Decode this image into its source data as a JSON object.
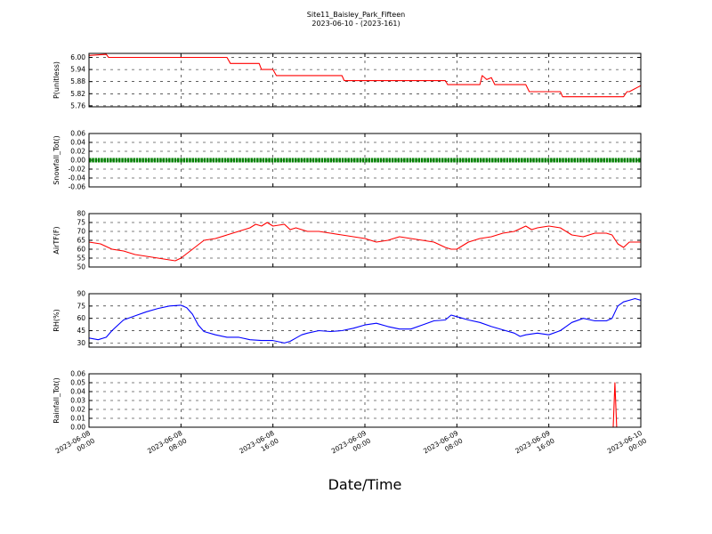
{
  "title": "Site11_Baisley_Park_Fifteen",
  "subtitle": "2023-06-10 - (2023-161)",
  "xlabel": "Date/Time",
  "x_ticks": [
    {
      "t": 0,
      "line1": "2023-06-08",
      "line2": "00:00"
    },
    {
      "t": 8,
      "line1": "2023-06-08",
      "line2": "08:00"
    },
    {
      "t": 16,
      "line1": "2023-06-08",
      "line2": "16:00"
    },
    {
      "t": 24,
      "line1": "2023-06-09",
      "line2": "00:00"
    },
    {
      "t": 32,
      "line1": "2023-06-09",
      "line2": "08:00"
    },
    {
      "t": 40,
      "line1": "2023-06-09",
      "line2": "16:00"
    },
    {
      "t": 48,
      "line1": "2023-06-10",
      "line2": "00:00"
    }
  ],
  "chart_data": [
    {
      "type": "line",
      "ylabel": "P(unitless)",
      "ylim": [
        5.755,
        6.02
      ],
      "yticks": [
        "6.00",
        "5.94",
        "5.88",
        "5.82",
        "5.76"
      ],
      "ytick_values": [
        6.0,
        5.94,
        5.88,
        5.82,
        5.76
      ],
      "color": "#ff0000",
      "x": [
        0,
        1.5,
        1.7,
        2.5,
        4,
        5,
        7,
        8,
        9,
        10,
        11,
        12,
        12.3,
        14,
        14.8,
        15,
        16,
        16.3,
        17,
        18,
        20,
        22,
        22.2,
        24,
        26,
        28,
        30,
        31,
        31.2,
        33,
        34,
        34.2,
        34.6,
        35,
        35.3,
        36,
        37,
        38,
        38.3,
        40,
        40.5,
        41,
        41.2,
        44,
        44.5,
        45,
        46,
        46.5,
        46.8,
        47,
        48
      ],
      "y": [
        6.01,
        6.015,
        6.0,
        6.0,
        6.0,
        6.0,
        6.0,
        6.0,
        6.0,
        6.0,
        6.0,
        6.0,
        5.97,
        5.97,
        5.97,
        5.94,
        5.94,
        5.91,
        5.91,
        5.91,
        5.91,
        5.91,
        5.885,
        5.885,
        5.885,
        5.885,
        5.885,
        5.885,
        5.865,
        5.865,
        5.865,
        5.91,
        5.89,
        5.9,
        5.865,
        5.865,
        5.865,
        5.865,
        5.83,
        5.83,
        5.83,
        5.83,
        5.805,
        5.805,
        5.805,
        5.805,
        5.805,
        5.805,
        5.83,
        5.83,
        5.86
      ]
    },
    {
      "type": "line",
      "ylabel": "Snowfall_Tot()",
      "ylim": [
        -0.06,
        0.06
      ],
      "yticks": [
        "0.06",
        "0.04",
        "0.02",
        "0.00",
        "-0.02",
        "-0.04",
        "-0.06"
      ],
      "ytick_values": [
        0.06,
        0.04,
        0.02,
        0.0,
        -0.02,
        -0.04,
        -0.06
      ],
      "color": "#008000",
      "marker": true,
      "x": [
        0,
        48
      ],
      "y": [
        0,
        0
      ]
    },
    {
      "type": "line",
      "ylabel": "AirTF(F)",
      "ylim": [
        50,
        80
      ],
      "yticks": [
        "80",
        "75",
        "70",
        "65",
        "60",
        "55",
        "50"
      ],
      "ytick_values": [
        80,
        75,
        70,
        65,
        60,
        55,
        50
      ],
      "color": "#ff0000",
      "x": [
        0,
        1,
        2,
        3,
        4,
        5,
        6,
        7,
        7.5,
        8,
        9,
        10,
        11,
        12,
        13,
        14,
        14.5,
        15,
        15.5,
        16,
        17,
        17.5,
        18,
        19,
        20,
        21,
        22,
        23,
        24,
        25,
        26,
        27,
        28,
        29,
        30,
        31,
        31.5,
        32,
        33,
        34,
        35,
        36,
        37,
        38,
        38.5,
        39,
        40,
        41,
        42,
        43,
        44,
        45,
        45.5,
        46,
        46.5,
        47,
        48
      ],
      "y": [
        64,
        63,
        60,
        59,
        57,
        56,
        55,
        54,
        53.5,
        55,
        60,
        65,
        66,
        68,
        70,
        72,
        74,
        73,
        75,
        73,
        74,
        71,
        72,
        70,
        70,
        69,
        68,
        67,
        66,
        64,
        65,
        67,
        66,
        65,
        64,
        61,
        60,
        60,
        64,
        66,
        67,
        69,
        70,
        73,
        71,
        72,
        73,
        72,
        68,
        67,
        69,
        69,
        68,
        63,
        61,
        64,
        64
      ]
    },
    {
      "type": "line",
      "ylabel": "RH(%)",
      "ylim": [
        25,
        90
      ],
      "yticks": [
        "90",
        "75",
        "60",
        "45",
        "30"
      ],
      "ytick_values": [
        90,
        75,
        60,
        45,
        30
      ],
      "color": "#0000ff",
      "x": [
        0,
        0.8,
        1.5,
        2,
        3,
        4,
        5,
        6,
        7,
        8,
        8.5,
        9,
        9.5,
        10,
        11,
        12,
        13,
        14,
        15,
        16,
        17,
        17.5,
        18,
        18.5,
        19,
        20,
        21,
        22,
        23,
        24,
        25,
        26,
        27,
        28,
        29,
        30,
        31,
        31.5,
        32,
        33,
        34,
        35,
        36,
        37,
        37.5,
        38,
        39,
        40,
        41,
        41.5,
        42,
        43,
        44,
        45,
        45.5,
        46,
        46.5,
        47,
        47.5,
        48
      ],
      "y": [
        36,
        34,
        37,
        45,
        58,
        63,
        68,
        72,
        75,
        76,
        73,
        65,
        52,
        44,
        40,
        37,
        37,
        34,
        33,
        33,
        30,
        32,
        36,
        40,
        42,
        45,
        44,
        45,
        48,
        52,
        54,
        50,
        47,
        47,
        52,
        57,
        58,
        64,
        62,
        58,
        55,
        50,
        46,
        42,
        38,
        40,
        42,
        40,
        45,
        50,
        55,
        60,
        57,
        57,
        60,
        75,
        80,
        82,
        84,
        82
      ]
    },
    {
      "type": "line",
      "ylabel": "Rainfall_Tot()",
      "ylim": [
        0,
        0.06
      ],
      "yticks": [
        "0.06",
        "0.05",
        "0.04",
        "0.03",
        "0.02",
        "0.01",
        "0.00"
      ],
      "ytick_values": [
        0.06,
        0.05,
        0.04,
        0.03,
        0.02,
        0.01,
        0.0
      ],
      "color": "#ff0000",
      "x": [
        0,
        45.6,
        45.75,
        45.9,
        48
      ],
      "y": [
        0,
        0,
        0.05,
        0,
        0
      ]
    }
  ]
}
